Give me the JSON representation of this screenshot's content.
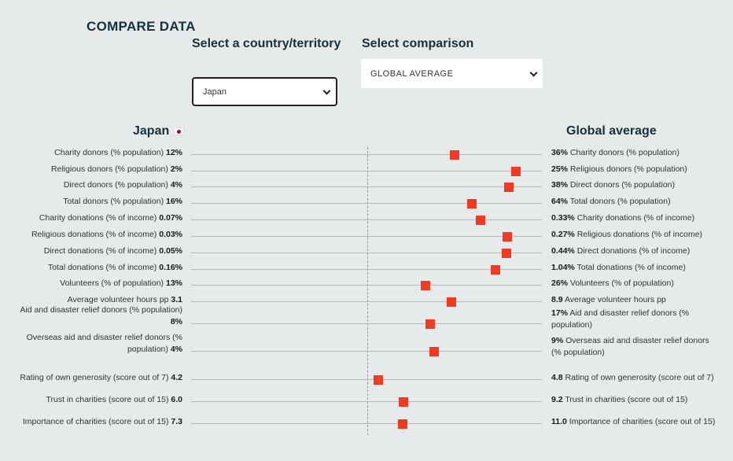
{
  "title": "COMPARE DATA",
  "country_label": "Select a country/territory",
  "comparison_label": "Select comparison",
  "country_select": {
    "value": "Japan"
  },
  "comparison_select": {
    "value": "GLOBAL AVERAGE"
  },
  "left_heading": "Japan",
  "right_heading": "Global average",
  "accent_color": "#f03a22",
  "metrics": [
    {
      "label": "Charity donors (% population)",
      "left": "12%",
      "right": "36%"
    },
    {
      "label": "Religious donors (% population)",
      "left": "2%",
      "right": "25%"
    },
    {
      "label": "Direct donors (% population)",
      "left": "4%",
      "right": "38%"
    },
    {
      "label": "Total donors (% population)",
      "left": "16%",
      "right": "64%"
    },
    {
      "label": "Charity donations (% of income)",
      "left": "0.07%",
      "right": "0.33%"
    },
    {
      "label": "Religious donations (% of income)",
      "left": "0.03%",
      "right": "0.27%"
    },
    {
      "label": "Direct donations (% of income)",
      "left": "0.05%",
      "right": "0.44%"
    },
    {
      "label": "Total donations (% of income)",
      "left": "0.16%",
      "right": "1.04%"
    },
    {
      "label": "Volunteers (% of population)",
      "left": "13%",
      "right": "26%"
    },
    {
      "label": "Average volunteer hours pp",
      "left": "3.1",
      "right": "8.9"
    },
    {
      "label": "Aid and disaster relief donors (% population)",
      "left": "8%",
      "right": "17%"
    },
    {
      "label": "Overseas aid and disaster relief donors (% population)",
      "left": "4%",
      "right": "9%"
    },
    {
      "label": "Rating of own generosity (score out of 7)",
      "left": "4.2",
      "right": "4.8"
    },
    {
      "label": "Trust in charities (score out of 15)",
      "left": "6.0",
      "right": "9.2"
    },
    {
      "label": "Importance of charities (score out of 15)",
      "left": "7.3",
      "right": "11.0"
    }
  ]
}
